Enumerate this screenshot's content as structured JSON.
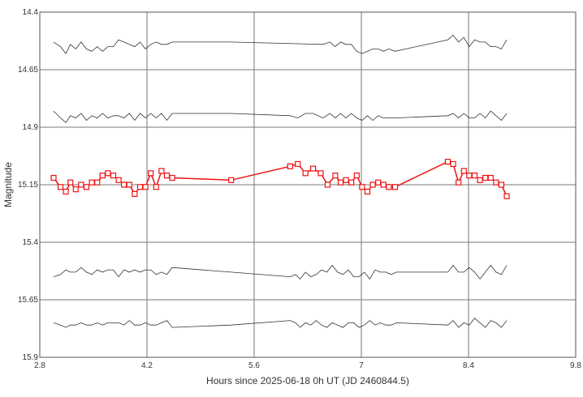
{
  "chart_data": {
    "type": "line",
    "xlabel": "Hours since 2025-06-18 0h UT (JD 2460844.5)",
    "ylabel": "Magnitude",
    "xlim": [
      2.8,
      9.8
    ],
    "ylim": [
      14.4,
      15.9
    ],
    "y_reversed": true,
    "grid": true,
    "x_ticks": [
      "2.8",
      "4.2",
      "5.6",
      "7",
      "8.4",
      "9.8"
    ],
    "y_ticks": [
      "14.4",
      "14.65",
      "14.9",
      "15.15",
      "15.4",
      "15.65",
      "15.9"
    ],
    "colors": {
      "target": "#ee1111",
      "comparison": "#333333",
      "grid": "#777777"
    },
    "series": [
      {
        "role": "comparison",
        "marker": false,
        "x": [
          2.98,
          3.07,
          3.14,
          3.2,
          3.27,
          3.34,
          3.41,
          3.48,
          3.55,
          3.62,
          3.69,
          3.76,
          3.83,
          3.9,
          3.97,
          4.04,
          4.11,
          4.18,
          4.25,
          4.32,
          4.39,
          4.46,
          4.53,
          5.3,
          6.5,
          6.59,
          6.66,
          6.73,
          6.8,
          6.87,
          6.94,
          7.01,
          7.08,
          7.15,
          7.22,
          7.29,
          7.36,
          7.44,
          8.13,
          8.2,
          8.27,
          8.34,
          8.41,
          8.48,
          8.55,
          8.62,
          8.69,
          8.76,
          8.83,
          8.9
        ],
        "values": [
          14.53,
          14.55,
          14.58,
          14.54,
          14.56,
          14.53,
          14.56,
          14.57,
          14.55,
          14.57,
          14.55,
          14.55,
          14.52,
          14.53,
          14.54,
          14.55,
          14.53,
          14.56,
          14.54,
          14.53,
          14.54,
          14.54,
          14.53,
          14.53,
          14.54,
          14.53,
          14.55,
          14.53,
          14.54,
          14.54,
          14.57,
          14.58,
          14.57,
          14.56,
          14.56,
          14.57,
          14.56,
          14.57,
          14.52,
          14.5,
          14.53,
          14.51,
          14.55,
          14.52,
          14.53,
          14.53,
          14.55,
          14.55,
          14.56,
          14.52
        ]
      },
      {
        "role": "comparison",
        "marker": false,
        "x": [
          2.98,
          3.07,
          3.14,
          3.2,
          3.27,
          3.34,
          3.41,
          3.48,
          3.55,
          3.62,
          3.69,
          3.76,
          3.83,
          3.9,
          3.97,
          4.04,
          4.11,
          4.18,
          4.25,
          4.32,
          4.39,
          4.46,
          4.53,
          5.3,
          6.07,
          6.17,
          6.27,
          6.37,
          6.5,
          6.59,
          6.66,
          6.73,
          6.8,
          6.87,
          6.94,
          7.01,
          7.08,
          7.15,
          7.22,
          7.29,
          7.36,
          7.44,
          8.13,
          8.2,
          8.27,
          8.34,
          8.41,
          8.48,
          8.55,
          8.62,
          8.69,
          8.76,
          8.83,
          8.9
        ],
        "values": [
          14.83,
          14.86,
          14.88,
          14.85,
          14.86,
          14.84,
          14.87,
          14.85,
          14.86,
          14.84,
          14.86,
          14.85,
          14.85,
          14.86,
          14.84,
          14.87,
          14.84,
          14.86,
          14.84,
          14.86,
          14.84,
          14.87,
          14.84,
          14.84,
          14.85,
          14.86,
          14.84,
          14.84,
          14.86,
          14.84,
          14.86,
          14.84,
          14.86,
          14.84,
          14.86,
          14.87,
          14.85,
          14.87,
          14.85,
          14.86,
          14.86,
          14.86,
          14.85,
          14.84,
          14.86,
          14.84,
          14.86,
          14.86,
          14.84,
          14.86,
          14.83,
          14.85,
          14.87,
          14.84
        ]
      },
      {
        "role": "target",
        "marker": true,
        "x": [
          2.98,
          3.07,
          3.14,
          3.2,
          3.27,
          3.34,
          3.41,
          3.48,
          3.55,
          3.62,
          3.69,
          3.76,
          3.83,
          3.9,
          3.97,
          4.04,
          4.11,
          4.18,
          4.25,
          4.32,
          4.39,
          4.46,
          4.53,
          5.3,
          6.07,
          6.17,
          6.27,
          6.37,
          6.47,
          6.56,
          6.66,
          6.73,
          6.8,
          6.87,
          6.94,
          7.01,
          7.08,
          7.15,
          7.22,
          7.29,
          7.36,
          7.44,
          8.13,
          8.2,
          8.27,
          8.34,
          8.41,
          8.48,
          8.55,
          8.62,
          8.69,
          8.76,
          8.83,
          8.9
        ],
        "values": [
          15.12,
          15.16,
          15.18,
          15.14,
          15.17,
          15.15,
          15.16,
          15.14,
          15.14,
          15.11,
          15.1,
          15.11,
          15.13,
          15.15,
          15.15,
          15.19,
          15.16,
          15.16,
          15.1,
          15.16,
          15.09,
          15.11,
          15.12,
          15.13,
          15.07,
          15.06,
          15.1,
          15.08,
          15.1,
          15.15,
          15.11,
          15.14,
          15.13,
          15.14,
          15.11,
          15.16,
          15.18,
          15.15,
          15.14,
          15.15,
          15.16,
          15.16,
          15.05,
          15.06,
          15.14,
          15.09,
          15.11,
          15.11,
          15.13,
          15.12,
          15.12,
          15.14,
          15.15,
          15.2
        ]
      },
      {
        "role": "comparison",
        "marker": false,
        "x": [
          2.98,
          3.07,
          3.14,
          3.2,
          3.27,
          3.34,
          3.41,
          3.48,
          3.55,
          3.62,
          3.69,
          3.76,
          3.83,
          3.9,
          3.97,
          4.04,
          4.11,
          4.18,
          4.25,
          4.32,
          4.39,
          4.46,
          4.53,
          5.3,
          6.07,
          6.14,
          6.2,
          6.27,
          6.34,
          6.41,
          6.48,
          6.55,
          6.62,
          6.69,
          6.76,
          6.83,
          6.9,
          6.97,
          7.04,
          7.11,
          7.18,
          7.25,
          7.32,
          7.39,
          7.46,
          8.13,
          8.2,
          8.27,
          8.34,
          8.41,
          8.48,
          8.55,
          8.62,
          8.69,
          8.76,
          8.83,
          8.9
        ],
        "values": [
          15.55,
          15.54,
          15.52,
          15.53,
          15.53,
          15.51,
          15.53,
          15.54,
          15.52,
          15.53,
          15.52,
          15.52,
          15.55,
          15.52,
          15.53,
          15.52,
          15.53,
          15.52,
          15.52,
          15.54,
          15.53,
          15.54,
          15.51,
          15.53,
          15.55,
          15.54,
          15.56,
          15.53,
          15.55,
          15.54,
          15.52,
          15.53,
          15.5,
          15.53,
          15.54,
          15.52,
          15.55,
          15.55,
          15.53,
          15.56,
          15.52,
          15.53,
          15.53,
          15.54,
          15.53,
          15.53,
          15.5,
          15.53,
          15.53,
          15.51,
          15.53,
          15.56,
          15.53,
          15.5,
          15.53,
          15.54,
          15.5
        ]
      },
      {
        "role": "comparison",
        "marker": false,
        "x": [
          2.98,
          3.07,
          3.14,
          3.2,
          3.27,
          3.34,
          3.41,
          3.48,
          3.55,
          3.62,
          3.69,
          3.76,
          3.83,
          3.9,
          3.97,
          4.04,
          4.11,
          4.18,
          4.25,
          4.32,
          4.39,
          4.46,
          4.53,
          5.3,
          6.07,
          6.14,
          6.2,
          6.27,
          6.34,
          6.41,
          6.48,
          6.55,
          6.62,
          6.69,
          6.76,
          6.83,
          6.9,
          6.97,
          7.04,
          7.11,
          7.18,
          7.25,
          7.32,
          7.39,
          7.46,
          8.13,
          8.2,
          8.27,
          8.34,
          8.41,
          8.48,
          8.55,
          8.62,
          8.69,
          8.76,
          8.83,
          8.9
        ],
        "values": [
          15.75,
          15.76,
          15.77,
          15.76,
          15.76,
          15.75,
          15.76,
          15.76,
          15.75,
          15.76,
          15.75,
          15.75,
          15.75,
          15.76,
          15.74,
          15.76,
          15.76,
          15.75,
          15.76,
          15.76,
          15.75,
          15.74,
          15.77,
          15.76,
          15.74,
          15.75,
          15.77,
          15.75,
          15.76,
          15.74,
          15.76,
          15.77,
          15.75,
          15.76,
          15.77,
          15.75,
          15.75,
          15.77,
          15.76,
          15.74,
          15.76,
          15.75,
          15.76,
          15.76,
          15.75,
          15.76,
          15.74,
          15.77,
          15.75,
          15.76,
          15.73,
          15.75,
          15.77,
          15.74,
          15.75,
          15.77,
          15.74
        ]
      }
    ]
  }
}
